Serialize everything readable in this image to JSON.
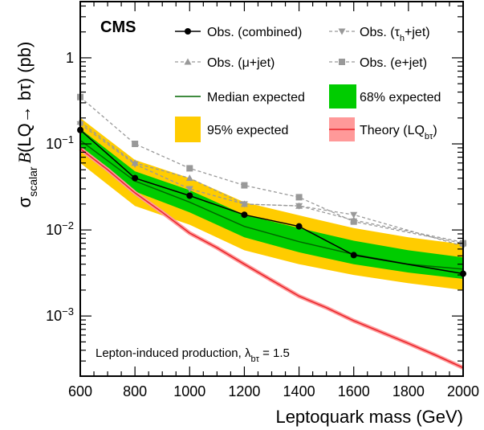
{
  "chart_data": {
    "type": "line",
    "experiment_label": "CMS",
    "xlabel": "Leptoquark mass (GeV)",
    "ylabel": {
      "sigma": "σ",
      "sub": "scalar",
      "b": "B",
      "mid": "(LQ→ bτ) (pb)"
    },
    "xlim": [
      600,
      2000
    ],
    "ylim": [
      0.0002,
      4.5
    ],
    "yscale": "log",
    "x_ticks": [
      "600",
      "800",
      "1000",
      "1200",
      "1400",
      "1600",
      "1800",
      "2000"
    ],
    "y_ticks": [
      {
        "value": 1,
        "base": "1",
        "exp": ""
      },
      {
        "value": 0.1,
        "base": "10",
        "exp": "−1"
      },
      {
        "value": 0.01,
        "base": "10",
        "exp": "−2"
      },
      {
        "value": 0.001,
        "base": "10",
        "exp": "−3"
      }
    ],
    "annotation": {
      "text": "Lepton-induced production, λ",
      "sub": "bτ",
      "suffix": " = 1.5"
    },
    "legend": [
      {
        "key": "obs_combined",
        "label": "Obs. (combined)",
        "sub": ""
      },
      {
        "key": "obs_tauh",
        "label": "Obs. (τ",
        "sub": "h",
        "suffix": "+jet)"
      },
      {
        "key": "obs_mu",
        "label": "Obs. (μ+jet)",
        "sub": ""
      },
      {
        "key": "obs_e",
        "label": "Obs. (e+jet)",
        "sub": ""
      },
      {
        "key": "median",
        "label": "Median expected",
        "sub": ""
      },
      {
        "key": "band68",
        "label": "68% expected",
        "sub": ""
      },
      {
        "key": "band95",
        "label": "95% expected",
        "sub": ""
      },
      {
        "key": "theory",
        "label": "Theory (LQ",
        "sub": "bτ",
        "suffix": ")"
      }
    ],
    "colors": {
      "band95": "#ffcc00",
      "band68": "#00cc00",
      "median": "#006600",
      "observed": "#000000",
      "channels": "#999999",
      "theory": "#e8242b",
      "theory_band": "#ff9999"
    },
    "x": [
      600,
      800,
      1000,
      1200,
      1400,
      1600,
      2000
    ],
    "series": [
      {
        "key": "obs_combined",
        "name": "Obs. (combined)",
        "values": [
          0.145,
          0.04,
          0.025,
          0.015,
          0.011,
          0.0051,
          0.0031
        ]
      },
      {
        "key": "obs_tauh",
        "name": "Obs. (τh+jet)",
        "values": [
          0.17,
          0.058,
          0.03,
          0.02,
          0.019,
          0.015,
          0.0065
        ]
      },
      {
        "key": "obs_mu",
        "name": "Obs. (μ+jet)",
        "values": [
          0.18,
          0.06,
          0.04,
          0.02,
          0.019,
          0.013,
          0.0072
        ]
      },
      {
        "key": "obs_e",
        "name": "Obs. (e+jet)",
        "values": [
          0.35,
          0.1,
          0.052,
          0.033,
          0.024,
          0.0125,
          0.007
        ]
      }
    ],
    "expected": {
      "x": [
        600,
        800,
        1000,
        1200,
        1400,
        1600,
        1800,
        2000
      ],
      "median": [
        0.11,
        0.037,
        0.021,
        0.011,
        0.0073,
        0.0052,
        0.004,
        0.0035
      ],
      "band68_low": [
        0.085,
        0.028,
        0.016,
        0.0082,
        0.0055,
        0.004,
        0.0032,
        0.0027
      ],
      "band68_high": [
        0.15,
        0.048,
        0.029,
        0.015,
        0.0105,
        0.0075,
        0.0058,
        0.0048
      ],
      "band95_low": [
        0.06,
        0.019,
        0.0115,
        0.0058,
        0.004,
        0.003,
        0.0024,
        0.002
      ],
      "band95_high": [
        0.2,
        0.065,
        0.04,
        0.021,
        0.0148,
        0.0105,
        0.0082,
        0.0068
      ]
    },
    "theory": {
      "x": [
        600,
        700,
        800,
        900,
        1000,
        1100,
        1200,
        1300,
        1400,
        1500,
        1600,
        1700,
        1800,
        1900,
        2000
      ],
      "values": [
        0.088,
        0.05,
        0.027,
        0.016,
        0.0092,
        0.0062,
        0.004,
        0.0026,
        0.0017,
        0.00125,
        0.00088,
        0.00065,
        0.00048,
        0.00035,
        0.00025
      ]
    }
  }
}
